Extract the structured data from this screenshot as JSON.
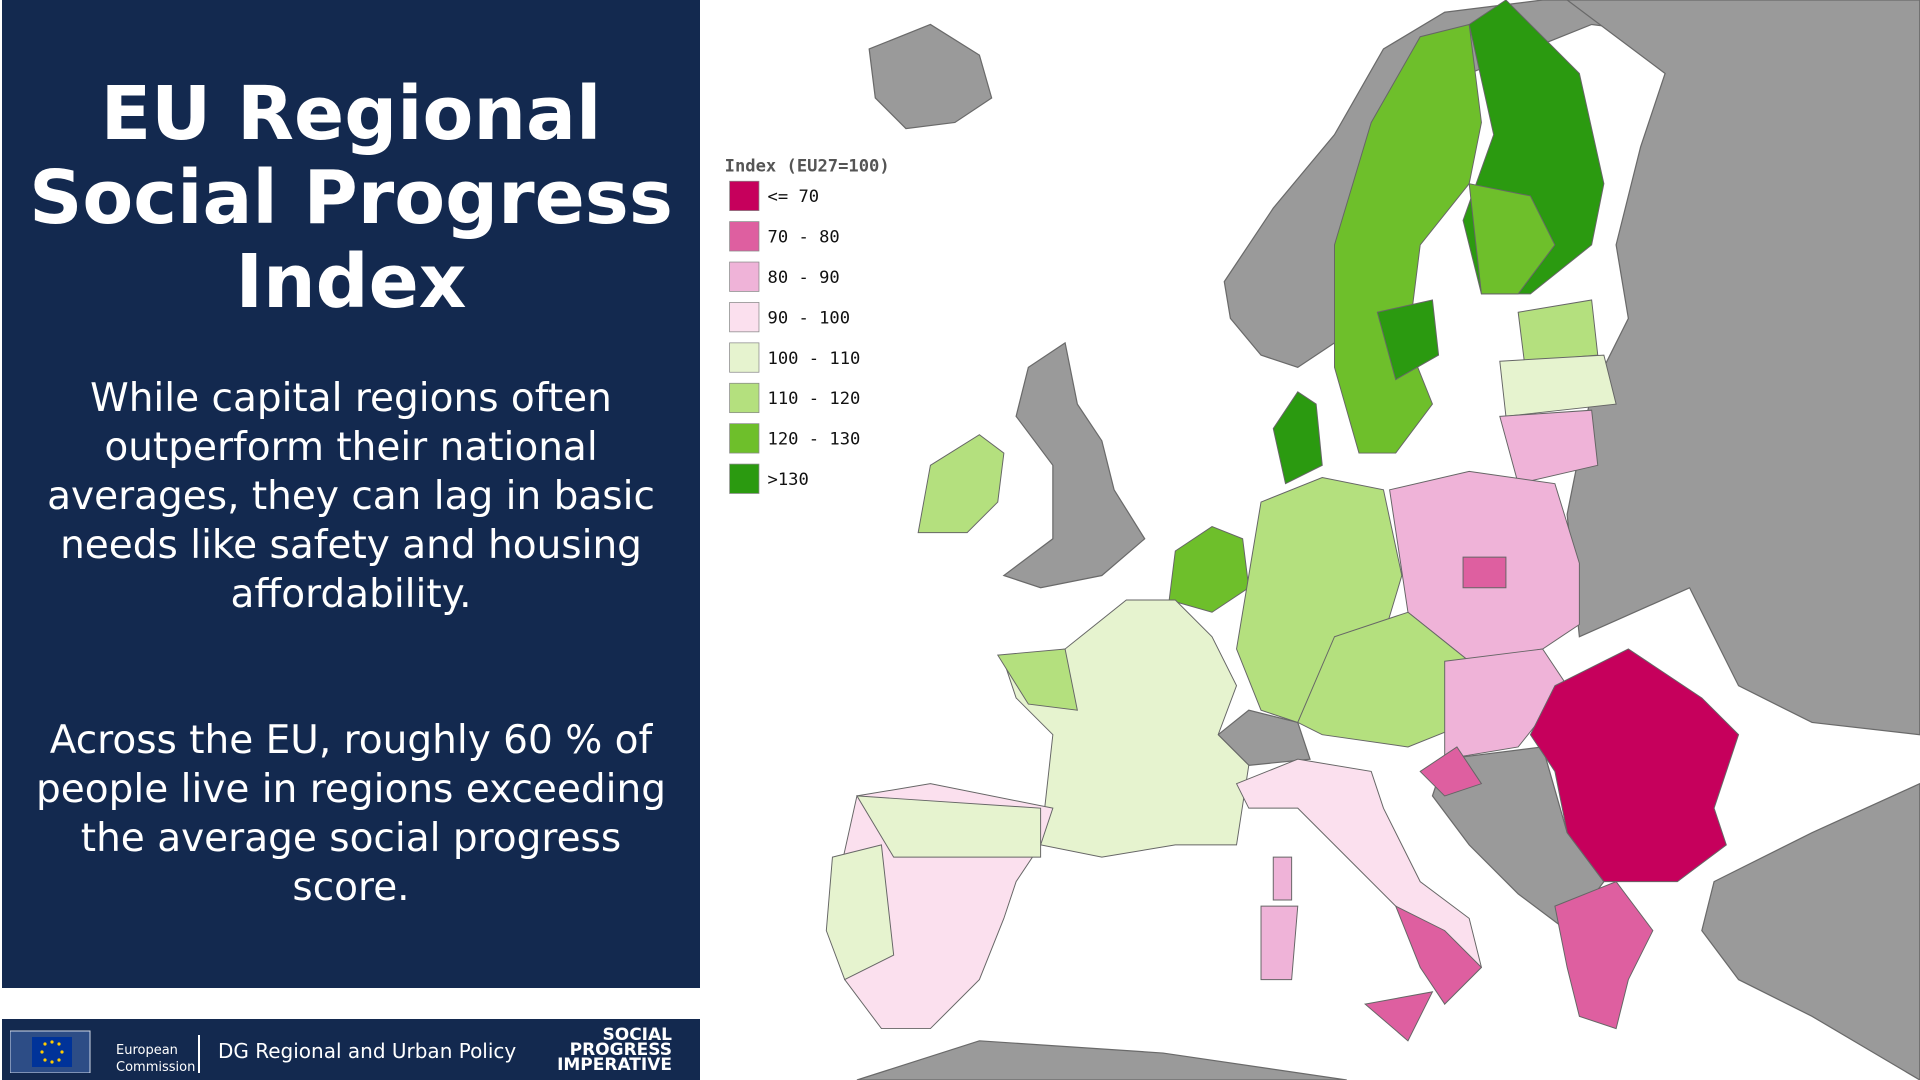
{
  "panel": {
    "title": [
      "EU Regional",
      "Social Progress",
      "Index"
    ],
    "paragraphs": [
      [
        "While capital regions often",
        "outperform their national",
        "averages, they can lag in basic",
        "needs like safety and housing",
        "affordability."
      ],
      [
        "Across the EU, roughly 60 % of",
        "people live in regions exceeding",
        "the average social progress score."
      ]
    ]
  },
  "legend": {
    "title": "Index (EU27=100)",
    "items": [
      {
        "label": "<= 70",
        "color": "#c6005c"
      },
      {
        "label": "70 - 80",
        "color": "#de5fa0"
      },
      {
        "label": "80 - 90",
        "color": "#efb3d8"
      },
      {
        "label": "90 - 100",
        "color": "#fbe0ee"
      },
      {
        "label": "100 - 110",
        "color": "#e6f3cf"
      },
      {
        "label": "110 - 120",
        "color": "#b4e07e"
      },
      {
        "label": "120 - 130",
        "color": "#6ebf2b"
      },
      {
        "label": ">130",
        "color": "#2b9a10"
      }
    ]
  },
  "footer": {
    "commission": [
      "European",
      "Commission"
    ],
    "dg": "DG Regional and Urban Policy",
    "partner": [
      "SOCIAL",
      "PROGRESS",
      "IMPERATIVE"
    ]
  }
}
